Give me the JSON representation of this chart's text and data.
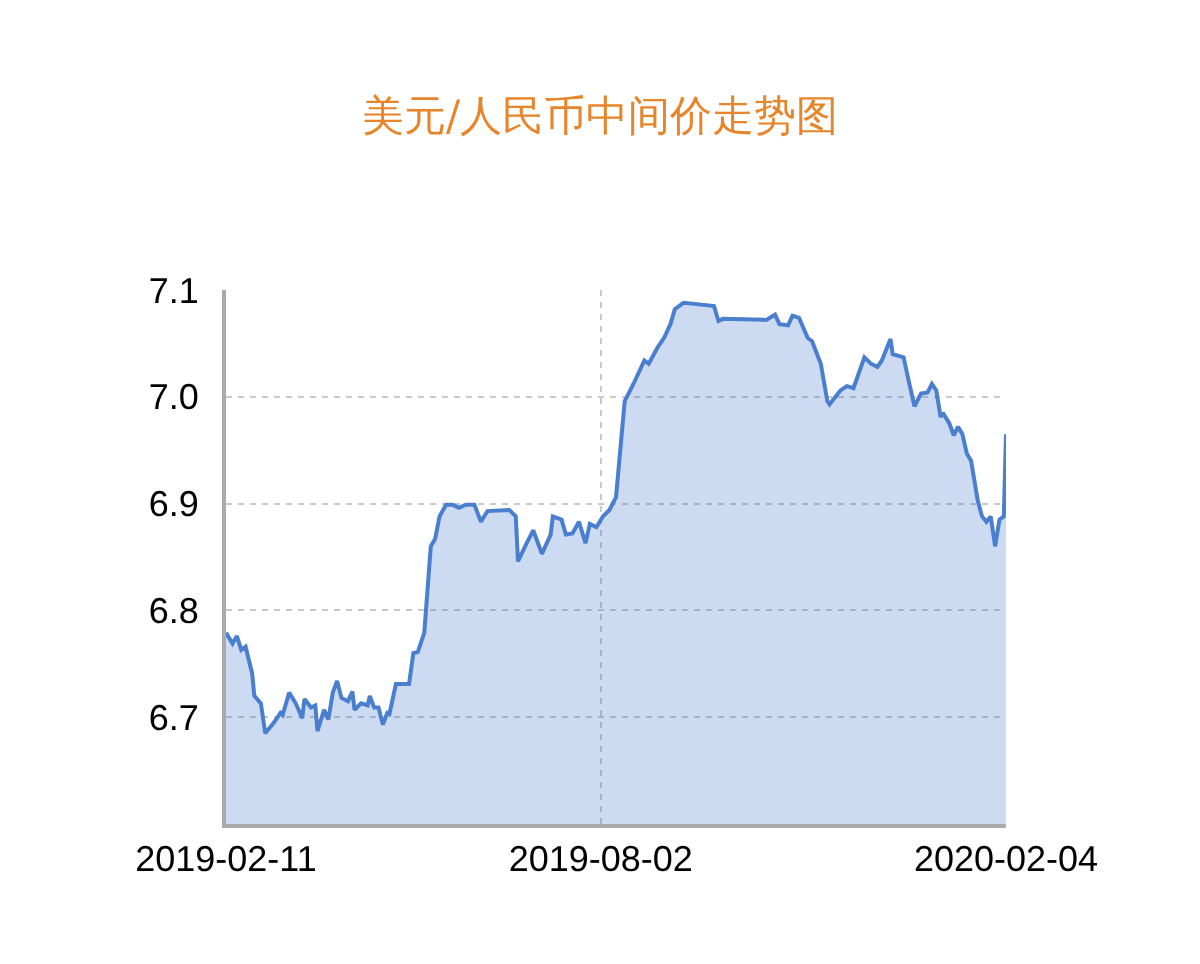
{
  "chart_data": {
    "type": "area",
    "title": "美元/人民币中间价走势图",
    "xlim": [
      "2019-02-11",
      "2020-02-04"
    ],
    "xticks": [
      "2019-02-11",
      "2019-08-02",
      "2020-02-04"
    ],
    "ylim": [
      6.6,
      7.1
    ],
    "yticks": [
      6.7,
      6.8,
      6.9,
      {
        "value": 7.0,
        "label": "7.0"
      },
      7.1
    ],
    "grid": true,
    "series": [
      {
        "color": "#4a7fd0",
        "x": [
          "2019-02-11",
          "2019-02-14",
          "2019-02-16",
          "2019-02-18",
          "2019-02-20",
          "2019-02-23",
          "2019-02-24",
          "2019-02-27",
          "2019-03-01",
          "2019-03-05",
          "2019-03-08",
          "2019-03-09",
          "2019-03-12",
          "2019-03-15",
          "2019-03-18",
          "2019-03-19",
          "2019-03-22",
          "2019-03-24",
          "2019-03-25",
          "2019-03-28",
          "2019-03-30",
          "2019-04-01",
          "2019-04-03",
          "2019-04-05",
          "2019-04-08",
          "2019-04-10",
          "2019-04-11",
          "2019-04-14",
          "2019-04-17",
          "2019-04-18",
          "2019-04-20",
          "2019-04-22",
          "2019-04-24",
          "2019-04-26",
          "2019-04-27",
          "2019-04-30",
          "2019-05-06",
          "2019-05-08",
          "2019-05-10",
          "2019-05-13",
          "2019-05-16",
          "2019-05-18",
          "2019-05-20",
          "2019-05-23",
          "2019-05-26",
          "2019-05-29",
          "2019-06-01",
          "2019-06-05",
          "2019-06-08",
          "2019-06-11",
          "2019-06-21",
          "2019-06-24",
          "2019-06-25",
          "2019-06-29",
          "2019-07-02",
          "2019-07-06",
          "2019-07-10",
          "2019-07-11",
          "2019-07-15",
          "2019-07-17",
          "2019-07-20",
          "2019-07-23",
          "2019-07-26",
          "2019-07-28",
          "2019-07-31",
          "2019-08-03",
          "2019-08-06",
          "2019-08-09",
          "2019-08-13",
          "2019-08-17",
          "2019-08-22",
          "2019-08-24",
          "2019-08-28",
          "2019-08-31",
          "2019-09-03",
          "2019-09-05",
          "2019-09-09",
          "2019-09-14",
          "2019-09-23",
          "2019-09-25",
          "2019-09-27",
          "2019-10-17",
          "2019-10-21",
          "2019-10-23",
          "2019-10-27",
          "2019-10-29",
          "2019-11-01",
          "2019-11-05",
          "2019-11-07",
          "2019-11-11",
          "2019-11-14",
          "2019-11-15",
          "2019-11-20",
          "2019-11-23",
          "2019-11-26",
          "2019-12-01",
          "2019-12-04",
          "2019-12-07",
          "2019-12-09",
          "2019-12-13",
          "2019-12-14",
          "2019-12-19",
          "2019-12-21",
          "2019-12-24",
          "2019-12-27",
          "2019-12-30",
          "2020-01-01",
          "2020-01-03",
          "2020-01-05",
          "2020-01-06",
          "2020-01-09",
          "2020-01-11",
          "2020-01-13",
          "2020-01-15",
          "2020-01-17",
          "2020-01-19",
          "2020-01-22",
          "2020-01-24",
          "2020-01-26",
          "2020-01-28",
          "2020-01-30",
          "2020-02-01",
          "2020-02-03",
          "2020-02-04"
        ],
        "values": [
          6.779,
          6.769,
          6.776,
          6.763,
          6.766,
          6.741,
          6.72,
          6.713,
          6.685,
          6.695,
          6.704,
          6.702,
          6.723,
          6.713,
          6.699,
          6.717,
          6.709,
          6.711,
          6.687,
          6.707,
          6.698,
          6.723,
          6.734,
          6.718,
          6.715,
          6.724,
          6.707,
          6.713,
          6.711,
          6.72,
          6.709,
          6.709,
          6.693,
          6.704,
          6.703,
          6.731,
          6.731,
          6.76,
          6.761,
          6.779,
          6.86,
          6.867,
          6.888,
          6.899,
          6.899,
          6.896,
          6.899,
          6.899,
          6.883,
          6.893,
          6.894,
          6.888,
          6.846,
          6.863,
          6.875,
          6.853,
          6.871,
          6.888,
          6.885,
          6.871,
          6.872,
          6.883,
          6.863,
          6.881,
          6.878,
          6.888,
          6.894,
          6.906,
          6.996,
          7.012,
          7.034,
          7.031,
          7.046,
          7.055,
          7.068,
          7.082,
          7.088,
          7.087,
          7.085,
          7.071,
          7.073,
          7.072,
          7.077,
          7.068,
          7.067,
          7.076,
          7.074,
          7.055,
          7.052,
          7.031,
          6.996,
          6.993,
          7.006,
          7.01,
          7.008,
          7.037,
          7.031,
          7.028,
          7.034,
          7.054,
          7.04,
          7.037,
          7.018,
          6.991,
          7.003,
          7.004,
          7.012,
          7.006,
          6.981,
          6.985,
          6.975,
          6.964,
          6.972,
          6.965,
          6.947,
          6.94,
          6.903,
          6.888,
          6.883,
          6.888,
          6.86,
          6.885,
          6.888,
          6.965
        ]
      }
    ]
  }
}
